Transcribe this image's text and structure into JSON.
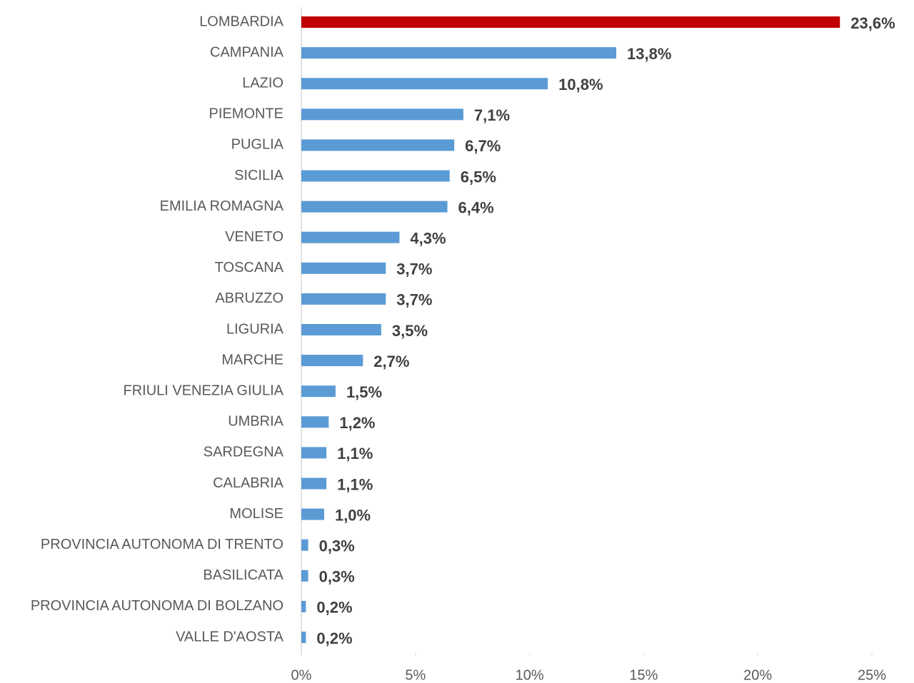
{
  "chart_data": {
    "type": "hbar",
    "categories": [
      "LOMBARDIA",
      "CAMPANIA",
      "LAZIO",
      "PIEMONTE",
      "PUGLIA",
      "SICILIA",
      "EMILIA ROMAGNA",
      "VENETO",
      "TOSCANA",
      "ABRUZZO",
      "LIGURIA",
      "MARCHE",
      "FRIULI VENEZIA GIULIA",
      "UMBRIA",
      "SARDEGNA",
      "CALABRIA",
      "MOLISE",
      "PROVINCIA AUTONOMA DI TRENTO",
      "BASILICATA",
      "PROVINCIA AUTONOMA DI BOLZANO",
      "VALLE D'AOSTA"
    ],
    "values": [
      23.6,
      13.8,
      10.8,
      7.1,
      6.7,
      6.5,
      6.4,
      4.3,
      3.7,
      3.7,
      3.5,
      2.7,
      1.5,
      1.2,
      1.1,
      1.1,
      1.0,
      0.3,
      0.3,
      0.2,
      0.2
    ],
    "value_labels": [
      "23,6%",
      "13,8%",
      "10,8%",
      "7,1%",
      "6,7%",
      "6,5%",
      "6,4%",
      "4,3%",
      "3,7%",
      "3,7%",
      "3,5%",
      "2,7%",
      "1,5%",
      "1,2%",
      "1,1%",
      "1,1%",
      "1,0%",
      "0,3%",
      "0,3%",
      "0,2%",
      "0,2%"
    ],
    "colors": [
      "#c00000",
      "#5b9bd5",
      "#5b9bd5",
      "#5b9bd5",
      "#5b9bd5",
      "#5b9bd5",
      "#5b9bd5",
      "#5b9bd5",
      "#5b9bd5",
      "#5b9bd5",
      "#5b9bd5",
      "#5b9bd5",
      "#5b9bd5",
      "#5b9bd5",
      "#5b9bd5",
      "#5b9bd5",
      "#5b9bd5",
      "#5b9bd5",
      "#5b9bd5",
      "#5b9bd5",
      "#5b9bd5"
    ],
    "xlim": [
      0,
      25
    ],
    "xticks": [
      {
        "value": 0,
        "label": "0%"
      },
      {
        "value": 5,
        "label": "5%"
      },
      {
        "value": 10,
        "label": "10%"
      },
      {
        "value": 15,
        "label": "15%"
      },
      {
        "value": 20,
        "label": "20%"
      },
      {
        "value": 25,
        "label": "25%"
      }
    ],
    "grid": false
  }
}
